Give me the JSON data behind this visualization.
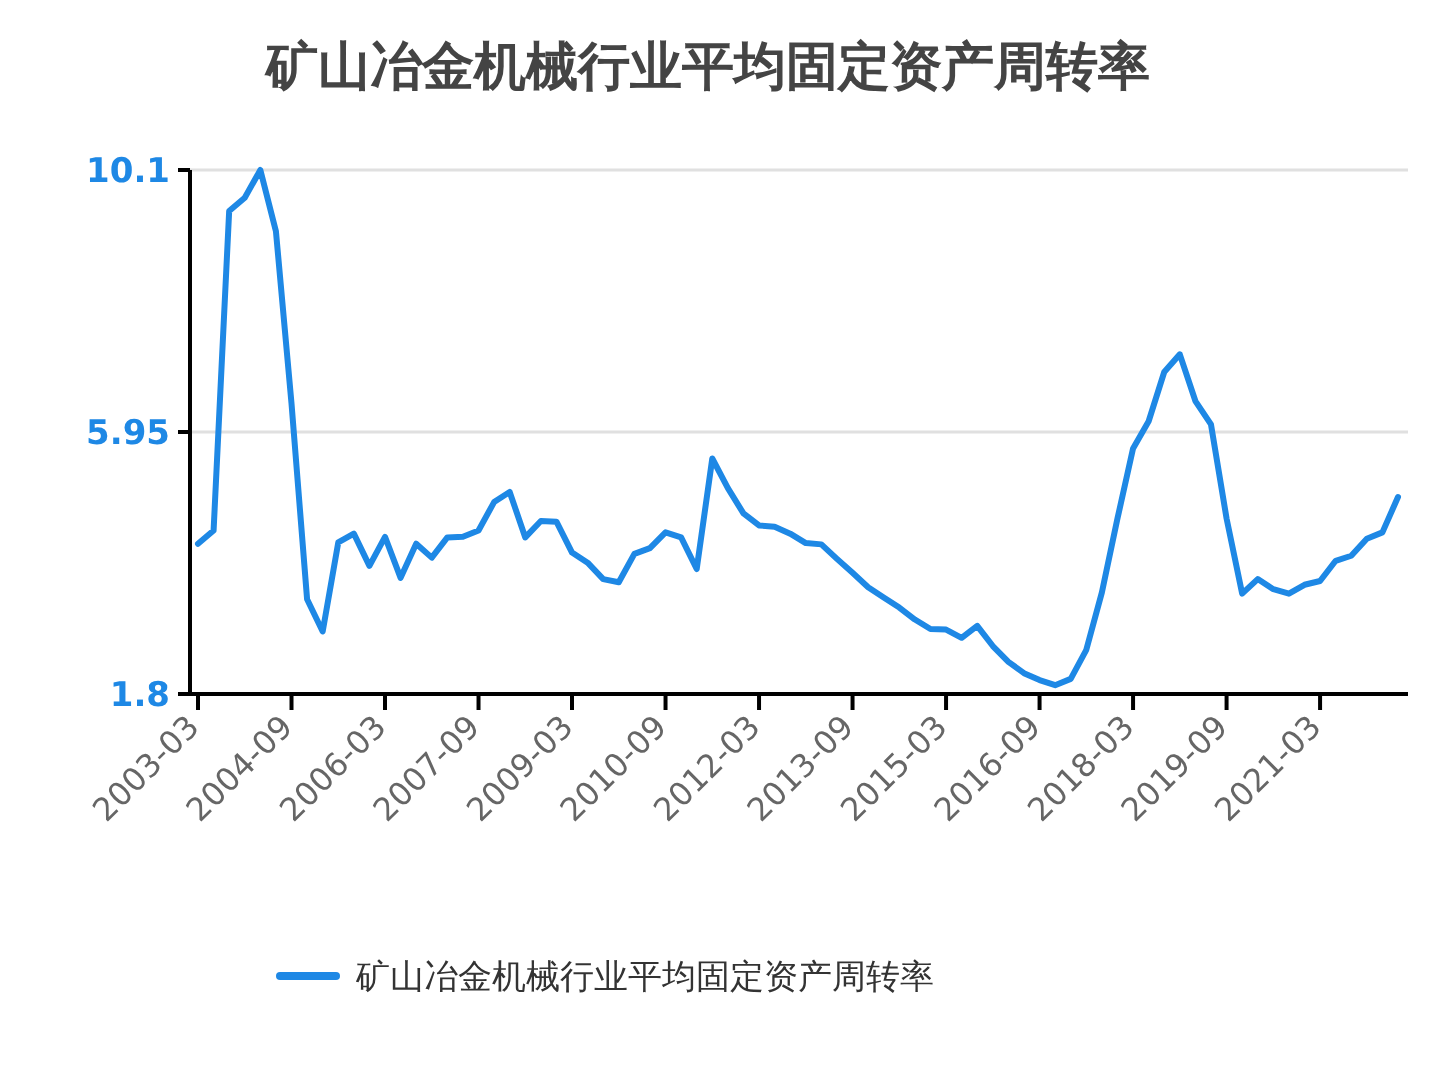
{
  "chart_data": {
    "type": "line",
    "title": "矿山冶金机械行业平均固定资产周转率",
    "categories": [
      "2003-03",
      null,
      null,
      null,
      null,
      null,
      "2004-09",
      null,
      null,
      null,
      null,
      null,
      "2006-03",
      null,
      null,
      null,
      null,
      null,
      "2007-09",
      null,
      null,
      null,
      null,
      null,
      "2009-03",
      null,
      null,
      null,
      null,
      null,
      "2010-09",
      null,
      null,
      null,
      null,
      null,
      "2012-03",
      null,
      null,
      null,
      null,
      null,
      "2013-09",
      null,
      null,
      null,
      null,
      null,
      "2015-03",
      null,
      null,
      null,
      null,
      null,
      "2016-09",
      null,
      null,
      null,
      null,
      null,
      "2018-03",
      null,
      null,
      null,
      null,
      null,
      "2019-09",
      null,
      null,
      null,
      null,
      null,
      "2021-03",
      null,
      null,
      null,
      null,
      null
    ],
    "series": [
      {
        "name": "矿山冶金机械行业平均固定资产周转率",
        "color": "#1e88e5",
        "values": [
          4.18,
          4.39,
          9.45,
          9.66,
          10.1,
          9.13,
          6.4,
          3.3,
          2.79,
          4.2,
          4.34,
          3.83,
          4.29,
          3.64,
          4.18,
          3.96,
          4.28,
          4.29,
          4.39,
          4.84,
          5.0,
          4.28,
          4.54,
          4.53,
          4.04,
          3.88,
          3.62,
          3.57,
          4.02,
          4.11,
          4.36,
          4.28,
          3.78,
          5.53,
          5.06,
          4.66,
          4.47,
          4.45,
          4.34,
          4.19,
          4.17,
          3.94,
          3.72,
          3.49,
          3.33,
          3.17,
          2.98,
          2.83,
          2.82,
          2.69,
          2.88,
          2.56,
          2.31,
          2.13,
          2.02,
          1.94,
          2.04,
          2.5,
          3.41,
          4.58,
          5.69,
          6.12,
          6.9,
          7.18,
          6.44,
          6.07,
          4.58,
          3.39,
          3.62,
          3.46,
          3.39,
          3.53,
          3.59,
          3.91,
          3.99,
          4.26,
          4.36,
          4.92
        ]
      }
    ],
    "ylim": [
      1.8,
      10.1
    ],
    "yticks": [
      1.8,
      5.95,
      10.1
    ],
    "grid": "y",
    "legend": "bottom",
    "marker": "none",
    "line_style": "solid"
  }
}
